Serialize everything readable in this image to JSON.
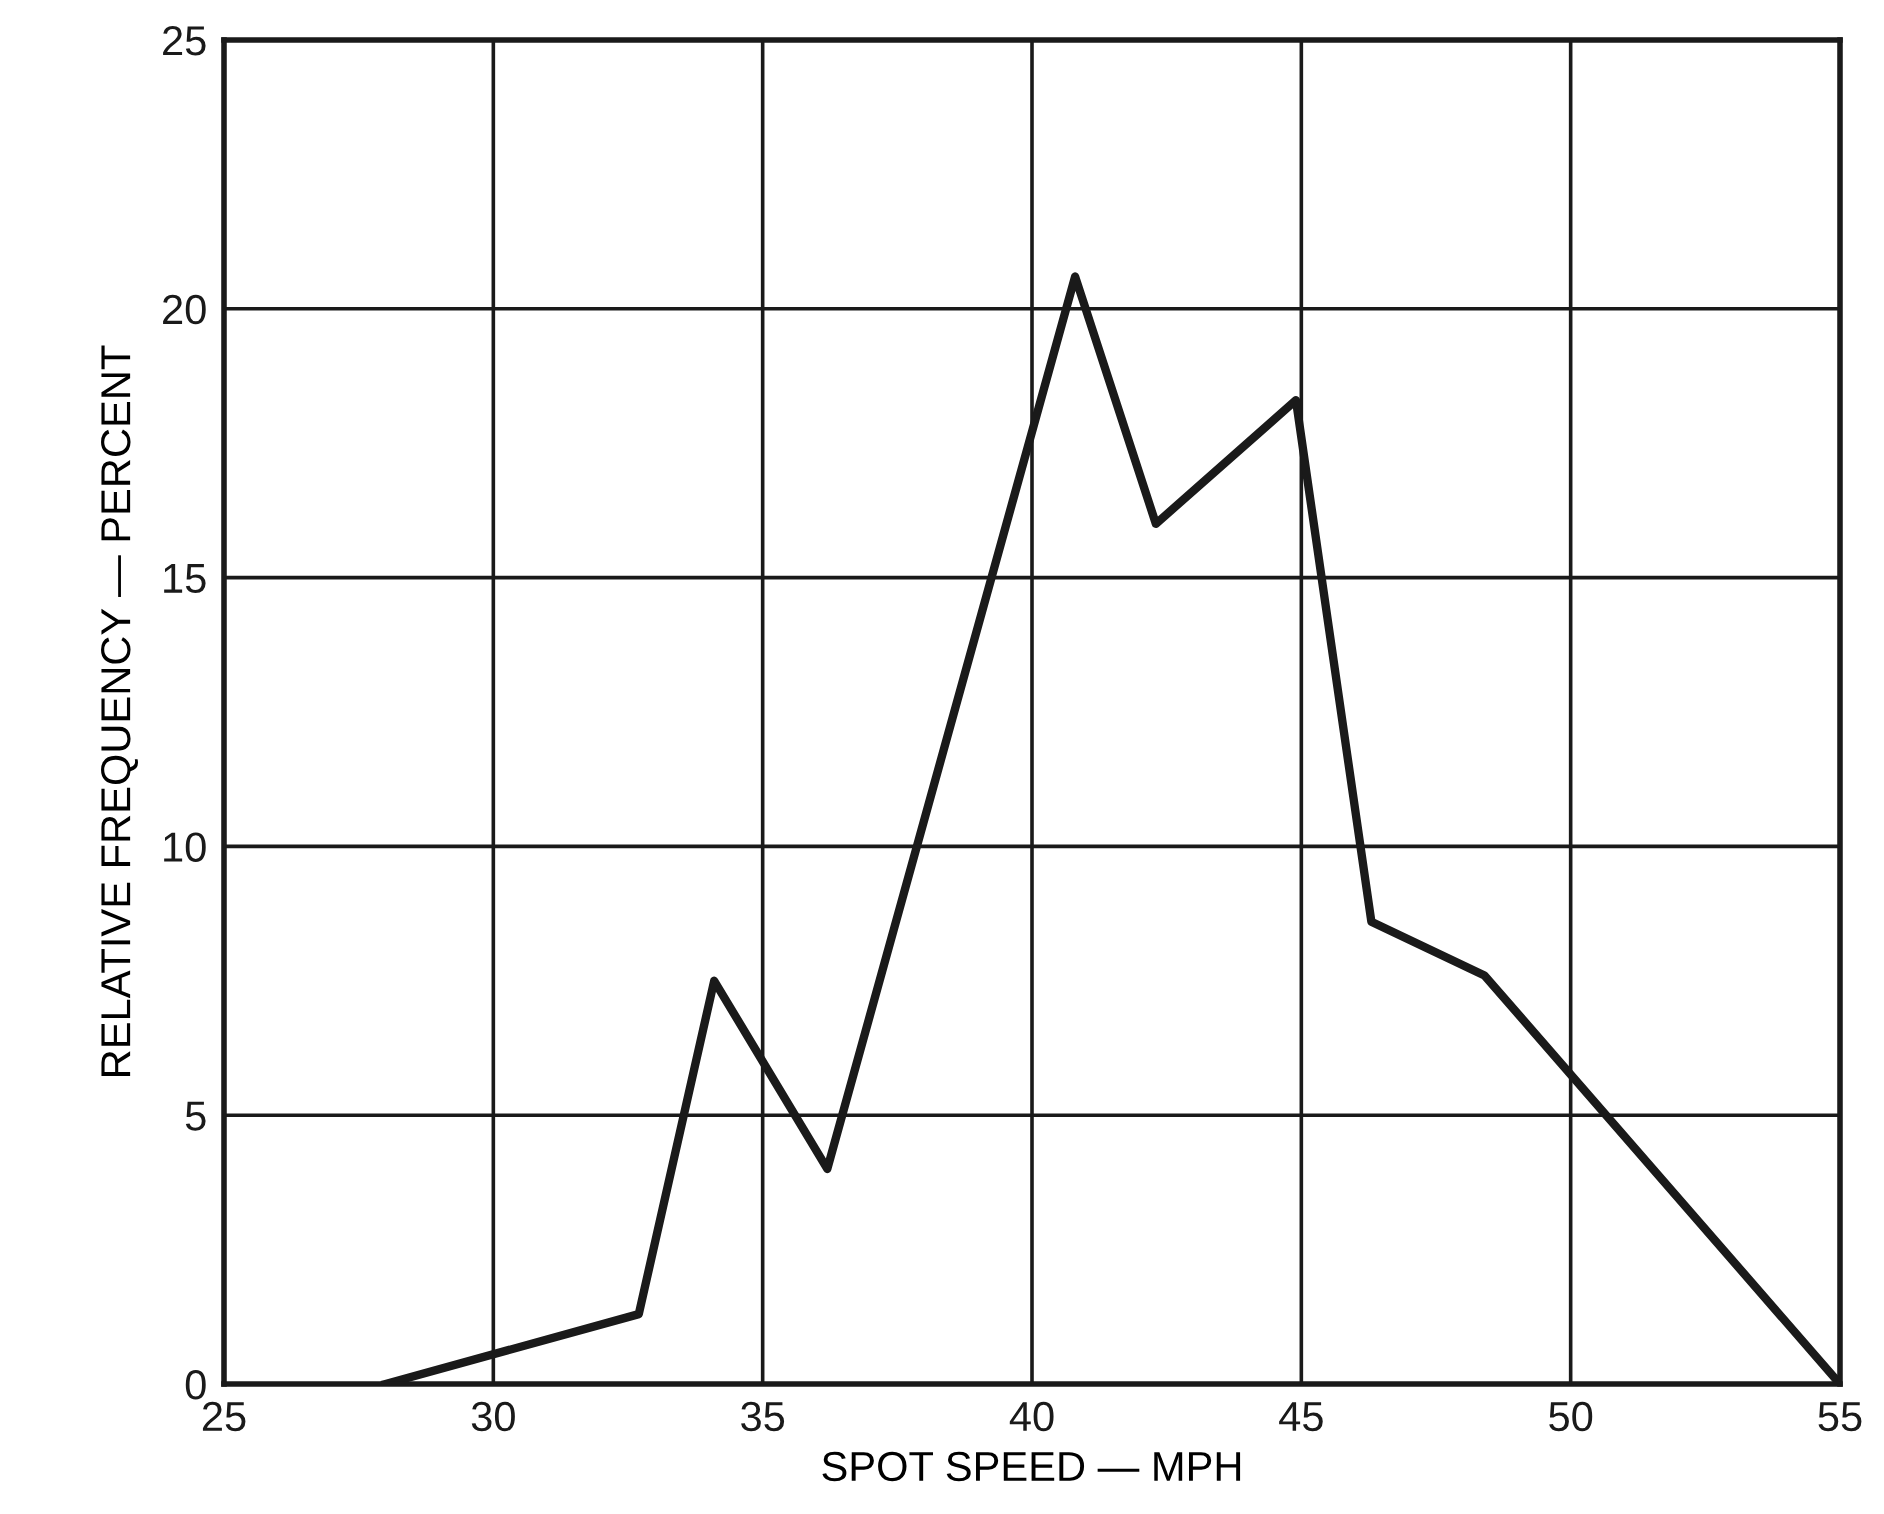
{
  "chart_data": {
    "type": "line",
    "xlabel": "SPOT SPEED — MPH",
    "ylabel": "RELATIVE FREQUENCY — PERCENT",
    "x": [
      28,
      32.7,
      34.1,
      36.2,
      40.8,
      42.3,
      44.9,
      46.3,
      48.4,
      55
    ],
    "series": [
      {
        "color": "#1a1a1a",
        "values": [
          0,
          1.3,
          7.5,
          4,
          20.6,
          16,
          18.3,
          8.6,
          7.6,
          0
        ]
      }
    ],
    "xlim": [
      25,
      55
    ],
    "xticks": [
      25,
      30,
      35,
      40,
      45,
      50,
      55
    ],
    "ylim": [
      0,
      25
    ],
    "yticks": [
      0,
      5,
      10,
      15,
      20,
      25
    ],
    "grid": true,
    "marker": "none",
    "line_style": "solid"
  }
}
